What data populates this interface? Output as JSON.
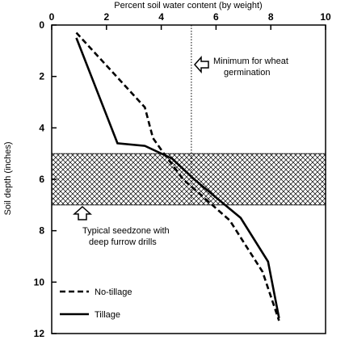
{
  "chart_data": {
    "type": "line",
    "title": "",
    "xlabel": "Percent soil water content (by weight)",
    "ylabel": "Soil depth (inches)",
    "x_axis_position": "top",
    "y_axis_inverted": true,
    "xlim": [
      0,
      10
    ],
    "ylim": [
      0,
      12
    ],
    "x_ticks": [
      "0",
      "2",
      "4",
      "6",
      "8",
      "10"
    ],
    "y_ticks": [
      "0",
      "2",
      "4",
      "6",
      "8",
      "10",
      "12"
    ],
    "grid": false,
    "series": [
      {
        "name": "No-tillage",
        "style": "dashed",
        "points": [
          {
            "x": 0.9,
            "y": 0.3
          },
          {
            "x": 3.4,
            "y": 3.2
          },
          {
            "x": 3.6,
            "y": 4.0
          },
          {
            "x": 3.7,
            "y": 4.4
          },
          {
            "x": 4.1,
            "y": 5.0
          },
          {
            "x": 4.8,
            "y": 6.0
          },
          {
            "x": 6.5,
            "y": 7.6
          },
          {
            "x": 7.7,
            "y": 9.6
          },
          {
            "x": 8.3,
            "y": 11.5
          }
        ]
      },
      {
        "name": "Tillage",
        "style": "solid",
        "points": [
          {
            "x": 0.9,
            "y": 0.5
          },
          {
            "x": 2.4,
            "y": 4.6
          },
          {
            "x": 3.4,
            "y": 4.7
          },
          {
            "x": 4.4,
            "y": 5.2
          },
          {
            "x": 5.2,
            "y": 6.0
          },
          {
            "x": 6.9,
            "y": 7.5
          },
          {
            "x": 7.9,
            "y": 9.2
          },
          {
            "x": 8.3,
            "y": 11.4
          }
        ]
      }
    ],
    "reference_line": {
      "x": 5.1,
      "label": "Minimum for wheat germination"
    },
    "shaded_band": {
      "y_from": 5.0,
      "y_to": 7.0,
      "label": "Typical seedzone with deep furrow drills"
    },
    "legend": {
      "placement": "bottom-left",
      "items": [
        {
          "name": "No-tillage",
          "style": "dashed"
        },
        {
          "name": "Tillage",
          "style": "solid"
        }
      ]
    },
    "annotations": {
      "min_label_line1": "Minimum for wheat",
      "min_label_line2": "germination",
      "seed_label_line1": "Typical seedzone with",
      "seed_label_line2": "deep furrow drills"
    }
  }
}
